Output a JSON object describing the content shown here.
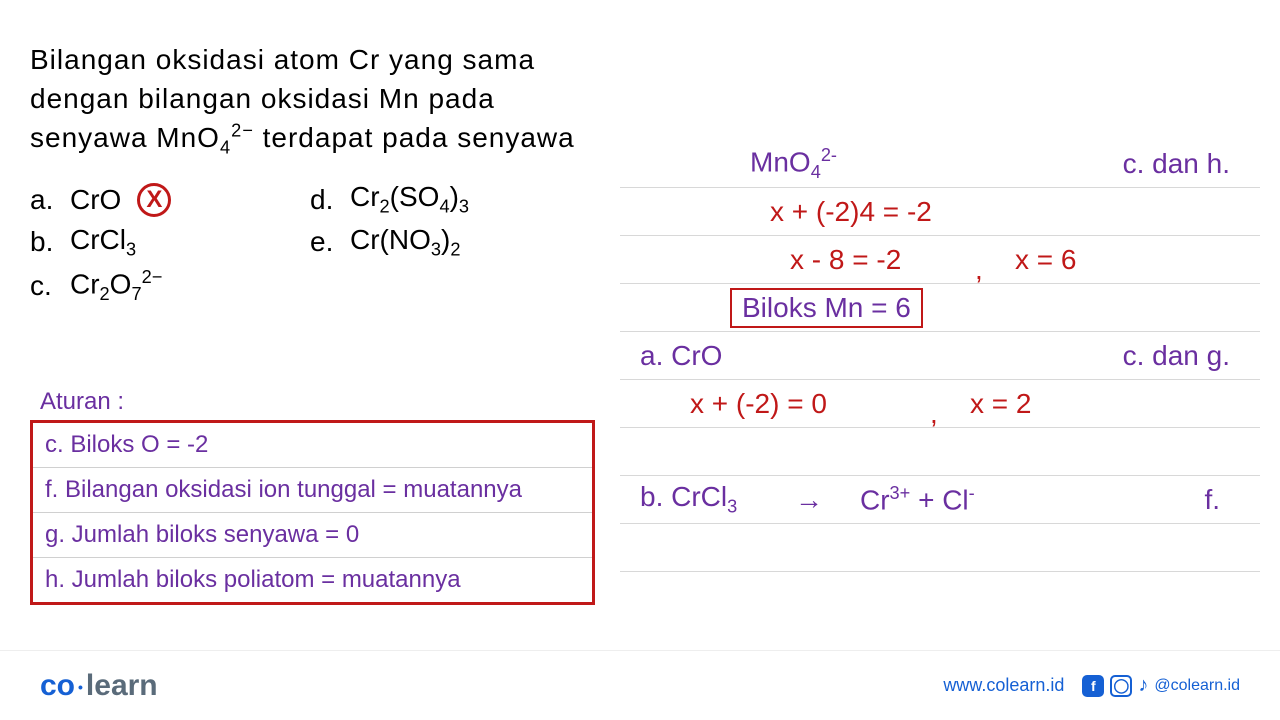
{
  "colors": {
    "black": "#000000",
    "red": "#c01818",
    "purple": "#6a2fa0",
    "rule_border": "#c01818",
    "blue_logo": "#1560d4",
    "gray_logo": "#5a6b7a",
    "footer_blue": "#1560d4",
    "line_gray": "#d8d8d8"
  },
  "question": {
    "line1": "Bilangan oksidasi atom Cr yang sama",
    "line2": "dengan bilangan oksidasi Mn pada",
    "line3_pre": "senyawa MnO",
    "line3_sub": "4",
    "line3_sup": "2−",
    "line3_post": " terdapat pada senyawa"
  },
  "options": {
    "a": {
      "letter": "a.",
      "formula_html": "CrO"
    },
    "b": {
      "letter": "b.",
      "formula_html": "CrCl<sub>3</sub>"
    },
    "c": {
      "letter": "c.",
      "formula_html": "Cr<sub>2</sub>O<sub>7</sub><sup>2−</sup>"
    },
    "d": {
      "letter": "d.",
      "formula_html": "Cr<sub>2</sub>(SO<sub>4</sub>)<sub>3</sub>"
    },
    "e": {
      "letter": "e.",
      "formula_html": "Cr(NO<sub>3</sub>)<sub>2</sub>"
    },
    "x_mark": "X"
  },
  "aturan": {
    "label": "Aturan :",
    "rules": [
      "c. Biloks O = -2",
      "f. Bilangan oksidasi ion tunggal = muatannya",
      "g. Jumlah biloks senyawa = 0",
      "h. Jumlah biloks poliatom = muatannya"
    ]
  },
  "work": {
    "mno4": "MnO<sub>4</sub><sup>2-</sup>",
    "r1_right": "c. dan h.",
    "eq1": "x + (-2)4 = -2",
    "eq2_left": "x - 8 = -2",
    "eq2_comma": ",",
    "eq2_right": "x = 6",
    "box": "Biloks Mn = 6",
    "a_label": "a. CrO",
    "a_right": "c. dan g.",
    "a_eq_left": "x + (-2) = 0",
    "a_eq_comma": ",",
    "a_eq_right": "x = 2",
    "b_label": "b. CrCl<sub>3</sub>",
    "b_arrow": "→",
    "b_prod": "Cr<sup>3+</sup>   +    Cl<sup>-</sup>",
    "b_right": "f."
  },
  "footer": {
    "logo_co": "co",
    "logo_learn": "learn",
    "url": "www.colearn.id",
    "handle": "@colearn.id"
  }
}
